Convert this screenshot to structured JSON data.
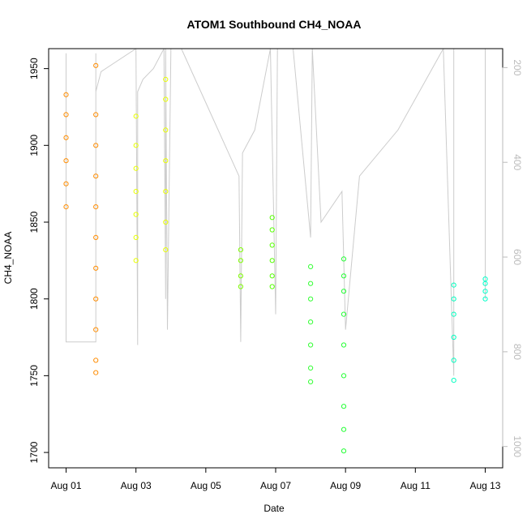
{
  "chart_data": {
    "type": "scatter",
    "title": "ATOM1 Southbound CH4_NOAA",
    "xlabel": "Date",
    "ylabel": "CH4_NOAA",
    "x_ticks": [
      "Aug 01",
      "Aug 03",
      "Aug 05",
      "Aug 07",
      "Aug 09",
      "Aug 11",
      "Aug 13"
    ],
    "x_tick_values": [
      1,
      3,
      5,
      7,
      9,
      11,
      13
    ],
    "xlim": [
      0.5,
      13.5
    ],
    "ylim": [
      1690,
      1963
    ],
    "y_ticks": [
      1700,
      1750,
      1800,
      1850,
      1900,
      1950
    ],
    "y2_ticks": [
      200,
      400,
      600,
      800,
      1000
    ],
    "y2lim": [
      1045,
      160
    ],
    "y2_color": "#bbbbbb",
    "grid": false,
    "series": [
      {
        "color": "#ff8c00",
        "x": [
          1.0,
          1.0,
          1.0,
          1.0,
          1.0,
          1.0
        ],
        "y": [
          1860,
          1875,
          1890,
          1905,
          1920,
          1933
        ]
      },
      {
        "color": "#ff8c00",
        "x": [
          1.85,
          1.85,
          1.85,
          1.85,
          1.85,
          1.85,
          1.85,
          1.85,
          1.85,
          1.85,
          1.85
        ],
        "y": [
          1752,
          1760,
          1780,
          1800,
          1820,
          1840,
          1860,
          1880,
          1900,
          1920,
          1952
        ]
      },
      {
        "color": "#e8ff00",
        "x": [
          3.0,
          3.0,
          3.0,
          3.0,
          3.0,
          3.0,
          3.0
        ],
        "y": [
          1825,
          1840,
          1855,
          1870,
          1885,
          1900,
          1919
        ]
      },
      {
        "color": "#e8ff00",
        "x": [
          3.85,
          3.85,
          3.85,
          3.85,
          3.85,
          3.85,
          3.85
        ],
        "y": [
          1832,
          1850,
          1870,
          1890,
          1910,
          1930,
          1943
        ]
      },
      {
        "color": "#7fff00",
        "x": [
          6.0,
          6.0,
          6.0,
          6.0
        ],
        "y": [
          1808,
          1815,
          1825,
          1832
        ]
      },
      {
        "color": "#55ff00",
        "x": [
          6.9,
          6.9,
          6.9,
          6.9,
          6.9,
          6.9
        ],
        "y": [
          1808,
          1815,
          1825,
          1835,
          1845,
          1853
        ]
      },
      {
        "color": "#33ff33",
        "x": [
          8.0,
          8.0,
          8.0,
          8.0,
          8.0,
          8.0,
          8.0
        ],
        "y": [
          1746,
          1755,
          1770,
          1785,
          1800,
          1810,
          1821
        ]
      },
      {
        "color": "#22ff33",
        "x": [
          8.95,
          8.95,
          8.95,
          8.95,
          8.95,
          8.95,
          8.95,
          8.95,
          8.95
        ],
        "y": [
          1701,
          1715,
          1730,
          1750,
          1770,
          1790,
          1805,
          1815,
          1826
        ]
      },
      {
        "color": "#00ffc0",
        "x": [
          12.1,
          12.1,
          12.1,
          12.1,
          12.1,
          12.1
        ],
        "y": [
          1747,
          1760,
          1775,
          1790,
          1800,
          1809
        ]
      },
      {
        "color": "#00ffc8",
        "x": [
          13.0,
          13.0,
          13.0,
          13.0
        ],
        "y": [
          1800,
          1805,
          1810,
          1813
        ]
      }
    ],
    "altitude_track": {
      "color": "#cccccc",
      "x": [
        1.0,
        1.0,
        1.0,
        1.85,
        1.85,
        1.85,
        2.0,
        3.0,
        3.05,
        3.05,
        3.2,
        3.5,
        3.8,
        3.85,
        3.85,
        3.9,
        4.0,
        4.3,
        5.95,
        6.0,
        6.05,
        6.4,
        6.85,
        7.0,
        7.05,
        7.5,
        8.0,
        8.05,
        8.3,
        8.9,
        9.0,
        9.4,
        10.5,
        11.8,
        12.1,
        12.1,
        12.5,
        13.0,
        13.0
      ],
      "y": [
        1960,
        1820,
        1772,
        1772,
        1960,
        1935,
        1948,
        1963,
        1770,
        1935,
        1943,
        1950,
        1963,
        1800,
        1963,
        1780,
        1963,
        1963,
        1880,
        1772,
        1895,
        1910,
        1963,
        1790,
        1963,
        1963,
        1840,
        1963,
        1850,
        1870,
        1780,
        1880,
        1910,
        1963,
        1750,
        1963,
        1963,
        1963,
        1800
      ]
    }
  }
}
